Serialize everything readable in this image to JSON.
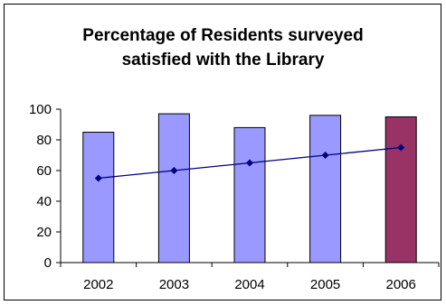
{
  "chart_data": {
    "type": "bar",
    "title_line1": "Percentage of Residents surveyed",
    "title_line2": "satisfied with the Library",
    "categories": [
      "2002",
      "2003",
      "2004",
      "2005",
      "2006"
    ],
    "bar_values": [
      85,
      97,
      88,
      96,
      95
    ],
    "line_values": [
      55,
      60,
      65,
      70,
      75
    ],
    "ylim": [
      0,
      100
    ],
    "yticks": [
      "0",
      "20",
      "40",
      "60",
      "80",
      "100"
    ],
    "xlabel": "",
    "ylabel": "",
    "grid": false,
    "colors": {
      "bar": "#9999ff",
      "highlight_bar": "#993366",
      "line": "#000080"
    },
    "highlight_index": 4
  }
}
